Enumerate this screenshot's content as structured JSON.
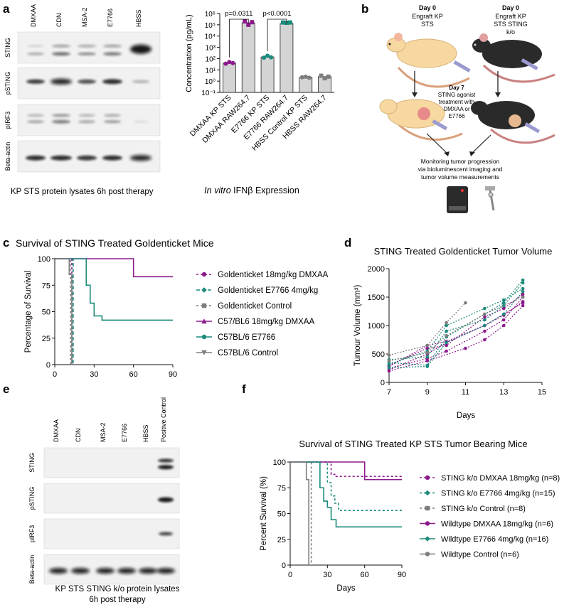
{
  "panel_letters": {
    "a": "a",
    "b": "b",
    "c": "c",
    "d": "d",
    "e": "e",
    "f": "f"
  },
  "colors": {
    "purple": "#8b1a8b",
    "teal": "#1a8a7a",
    "gray": "#7d7d7d",
    "dark": "#111111"
  },
  "panel_a": {
    "lanes": [
      "DMXAA",
      "CDN",
      "MSA-2",
      "E7766",
      "HBSS"
    ],
    "blots": [
      "STING",
      "pSTING",
      "pIRF3",
      "Beta-actin"
    ],
    "caption": "KP STS protein lysates 6h post therapy"
  },
  "panel_e": {
    "lanes": [
      "DMXAA",
      "CDN",
      "MSA-2",
      "E7766",
      "HBSS",
      "Positive Control"
    ],
    "blots": [
      "STING",
      "pSTING",
      "pIRF3",
      "Beta-actin"
    ],
    "caption_line1": "KP STS STING k/o protein lysates",
    "caption_line2": "6h post therapy"
  },
  "panel_b": {
    "left_day": "Day 0",
    "left_text1": "Engraft KP",
    "left_text2": "STS",
    "right_day": "Day 0",
    "right_text1": "Engraft KP",
    "right_text2": "STS STING",
    "right_text3": "k/o",
    "mid_day": "Day 7",
    "mid_text1": "STING agonist",
    "mid_text2": "treatment with",
    "mid_text3": "DMXAA or",
    "mid_text4": "E7766",
    "bottom_text1": "Monitoring tumor progression",
    "bottom_text2": "via bioluminescent imaging and",
    "bottom_text3": "tumor volume measurements"
  },
  "chart_data": [
    {
      "id": "ifnb",
      "type": "bar",
      "title": "In vitro IFNβ Expression",
      "title_italic_part": "In vitro",
      "title_rest": "IFNβ Expression",
      "ylabel": "Concentration (pg/mL)",
      "yscale": "log",
      "ylim": [
        0.1,
        1000000
      ],
      "yticks": [
        "10⁶",
        "10⁵",
        "10⁴",
        "10³",
        "10²",
        "10¹",
        "10⁰",
        "10⁻¹"
      ],
      "categories": [
        "DMXAA KP STS",
        "DMXAA RAW264.7",
        "E7766 KP STS",
        "E7766 RAW264.7",
        "HBSS Control KP STS",
        "HBSS RAW264.7"
      ],
      "values": [
        40,
        150000,
        140,
        130000,
        2.2,
        2.5
      ],
      "points": [
        [
          35,
          50,
          40
        ],
        [
          200000,
          100000,
          170000
        ],
        [
          120,
          180,
          130
        ],
        [
          160000,
          150000,
          160000
        ],
        [
          2.2,
          2.5,
          2.0
        ],
        [
          3.0,
          1.8,
          2.5
        ]
      ],
      "point_colors": [
        "#8b1a8b",
        "#8b1a8b",
        "#1a8a7a",
        "#1a8a7a",
        "#7d7d7d",
        "#7d7d7d"
      ],
      "point_shapes": [
        "circle",
        "square",
        "circle",
        "square",
        "circle",
        "square"
      ],
      "annotations": [
        {
          "text": "p=0.0311",
          "from": 0,
          "to": 1
        },
        {
          "text": "p<0.0001",
          "from": 2,
          "to": 3
        }
      ]
    },
    {
      "id": "survival-goldenticket",
      "type": "line",
      "title": "Survival of STING Treated Goldenticket Mice",
      "xlabel": "",
      "ylabel": "Percentage of Survival",
      "xlim": [
        0,
        90
      ],
      "ylim": [
        0,
        100
      ],
      "xticks": [
        0,
        30,
        60,
        90
      ],
      "yticks": [
        0,
        25,
        50,
        75,
        100
      ],
      "series": [
        {
          "name": "Goldenticket 18mg/kg DMXAA",
          "color": "#8b1a8b",
          "dash": "3,3",
          "marker": "circle",
          "steps": [
            [
              0,
              100
            ],
            [
              13,
              100
            ],
            [
              13,
              0
            ]
          ]
        },
        {
          "name": "Goldenticket E7766 4mg/kg",
          "color": "#1a8a7a",
          "dash": "5,3",
          "marker": "diamond",
          "steps": [
            [
              0,
              100
            ],
            [
              14,
              100
            ],
            [
              14,
              0
            ]
          ]
        },
        {
          "name": "Goldenticket Control",
          "color": "#7d7d7d",
          "dash": "3,3",
          "marker": "square",
          "steps": [
            [
              0,
              100
            ],
            [
              12,
              100
            ],
            [
              12,
              0
            ]
          ]
        },
        {
          "name": "C57/BL6 18mg/kg DMXAA",
          "color": "#8b1a8b",
          "dash": "",
          "marker": "triangle-up",
          "steps": [
            [
              0,
              100
            ],
            [
              60,
              100
            ],
            [
              60,
              83
            ],
            [
              90,
              83
            ]
          ]
        },
        {
          "name": "C57BL/6 E7766",
          "color": "#1a8a7a",
          "dash": "",
          "marker": "circle",
          "steps": [
            [
              0,
              100
            ],
            [
              24,
              100
            ],
            [
              24,
              75
            ],
            [
              27,
              75
            ],
            [
              27,
              58
            ],
            [
              30,
              58
            ],
            [
              30,
              46
            ],
            [
              36,
              46
            ],
            [
              36,
              42
            ],
            [
              90,
              42
            ]
          ]
        },
        {
          "name": "C57BL/6 Control",
          "color": "#7d7d7d",
          "dash": "",
          "marker": "triangle-down",
          "steps": [
            [
              0,
              100
            ],
            [
              11,
              100
            ],
            [
              11,
              85
            ],
            [
              13,
              85
            ],
            [
              13,
              0
            ]
          ]
        }
      ]
    },
    {
      "id": "tumor-volume",
      "type": "line",
      "title": "STING Treated Goldenticket Tumor Volume",
      "xlabel": "Days",
      "ylabel": "Tumour Volume (mm³)",
      "xlim": [
        7,
        15
      ],
      "ylim": [
        0,
        2000
      ],
      "xticks": [
        7,
        9,
        11,
        13,
        15
      ],
      "yticks": [
        0,
        500,
        1000,
        1500,
        2000
      ],
      "series": [
        {
          "name": "Goldenticket 18mg/kg DMXAA",
          "color": "#8b1a8b",
          "lines": [
            [
              [
                7,
                220
              ],
              [
                9,
                500
              ],
              [
                10,
                700
              ],
              [
                12,
                1000
              ],
              [
                13,
                1200
              ],
              [
                14,
                1400
              ]
            ],
            [
              [
                7,
                250
              ],
              [
                9,
                420
              ],
              [
                10,
                550
              ],
              [
                12,
                900
              ],
              [
                13,
                1100
              ],
              [
                14,
                1500
              ]
            ],
            [
              [
                7,
                300
              ],
              [
                9,
                600
              ],
              [
                10,
                650
              ],
              [
                12,
                1150
              ],
              [
                13,
                1300
              ],
              [
                14,
                1550
              ]
            ],
            [
              [
                7,
                200
              ],
              [
                9,
                380
              ],
              [
                11,
                600
              ],
              [
                12,
                750
              ],
              [
                13,
                1000
              ],
              [
                14,
                1350
              ]
            ],
            [
              [
                7,
                280
              ],
              [
                9,
                650
              ],
              [
                10,
                720
              ],
              [
                12,
                1000
              ],
              [
                13,
                1180
              ],
              [
                14,
                1420
              ]
            ]
          ]
        },
        {
          "name": "Goldenticket E7766 4mg/kg",
          "color": "#1a8a7a",
          "lines": [
            [
              [
                7,
                350
              ],
              [
                9,
                300
              ],
              [
                10,
                800
              ],
              [
                12,
                1200
              ],
              [
                13,
                1400
              ],
              [
                14,
                1800
              ]
            ],
            [
              [
                7,
                320
              ],
              [
                9,
                550
              ],
              [
                10,
                1000
              ],
              [
                12,
                1300
              ],
              [
                13,
                1450
              ],
              [
                14,
                1650
              ]
            ],
            [
              [
                7,
                400
              ],
              [
                9,
                450
              ],
              [
                10,
                900
              ],
              [
                12,
                1100
              ],
              [
                13,
                1350
              ],
              [
                14,
                1750
              ]
            ],
            [
              [
                7,
                260
              ],
              [
                9,
                280
              ],
              [
                10,
                700
              ],
              [
                12,
                1000
              ],
              [
                13,
                1200
              ],
              [
                14,
                1600
              ]
            ]
          ]
        },
        {
          "name": "Goldenticket Control",
          "color": "#7d7d7d",
          "lines": [
            [
              [
                7,
                480
              ],
              [
                9,
                650
              ],
              [
                10,
                1050
              ],
              [
                11,
                1400
              ]
            ],
            [
              [
                7,
                380
              ],
              [
                9,
                520
              ],
              [
                10,
                820
              ],
              [
                12,
                1200
              ],
              [
                14,
                1500
              ]
            ]
          ]
        }
      ]
    },
    {
      "id": "survival-ko",
      "type": "line",
      "title": "Survival of  STING Treated KP STS Tumor Bearing Mice",
      "xlabel": "Days",
      "ylabel": "Percent Survival (%)",
      "xlim": [
        0,
        90
      ],
      "ylim": [
        0,
        100
      ],
      "xticks": [
        0,
        30,
        60,
        90
      ],
      "yticks": [
        0,
        25,
        50,
        75,
        100
      ],
      "series": [
        {
          "name": "STING k/o DMXAA 18mg/kg (n=8)",
          "color": "#8b1a8b",
          "dash": "3,3",
          "marker": "circle",
          "steps": [
            [
              0,
              100
            ],
            [
              33,
              100
            ],
            [
              33,
              88
            ],
            [
              37,
              88
            ],
            [
              37,
              86
            ],
            [
              90,
              86
            ]
          ]
        },
        {
          "name": "STING k/o E7766 4mg/kg (n=15)",
          "color": "#1a8a7a",
          "dash": "3,3",
          "marker": "diamond",
          "steps": [
            [
              0,
              100
            ],
            [
              30,
              100
            ],
            [
              30,
              80
            ],
            [
              33,
              80
            ],
            [
              33,
              67
            ],
            [
              36,
              67
            ],
            [
              36,
              60
            ],
            [
              39,
              60
            ],
            [
              39,
              53
            ],
            [
              90,
              53
            ]
          ]
        },
        {
          "name": "STING k/o Control (n=8)",
          "color": "#7d7d7d",
          "dash": "3,3",
          "marker": "square",
          "steps": [
            [
              0,
              100
            ],
            [
              17,
              100
            ],
            [
              17,
              0
            ]
          ]
        },
        {
          "name": "Wildtype DMXAA 18mg/kg (n=6)",
          "color": "#8b1a8b",
          "dash": "",
          "marker": "circle",
          "steps": [
            [
              0,
              100
            ],
            [
              60,
              100
            ],
            [
              60,
              83
            ],
            [
              90,
              83
            ]
          ]
        },
        {
          "name": "Wildtype E7766 4mg/kg (n=16)",
          "color": "#1a8a7a",
          "dash": "",
          "marker": "diamond",
          "steps": [
            [
              0,
              100
            ],
            [
              24,
              100
            ],
            [
              24,
              75
            ],
            [
              27,
              75
            ],
            [
              27,
              62
            ],
            [
              30,
              62
            ],
            [
              30,
              56
            ],
            [
              33,
              56
            ],
            [
              33,
              44
            ],
            [
              37,
              44
            ],
            [
              37,
              37
            ],
            [
              90,
              37
            ]
          ]
        },
        {
          "name": "Wildtype Control (n=6)",
          "color": "#7d7d7d",
          "dash": "",
          "marker": "circle",
          "steps": [
            [
              0,
              100
            ],
            [
              13,
              100
            ],
            [
              13,
              83
            ],
            [
              15,
              83
            ],
            [
              15,
              0
            ]
          ]
        }
      ]
    }
  ]
}
